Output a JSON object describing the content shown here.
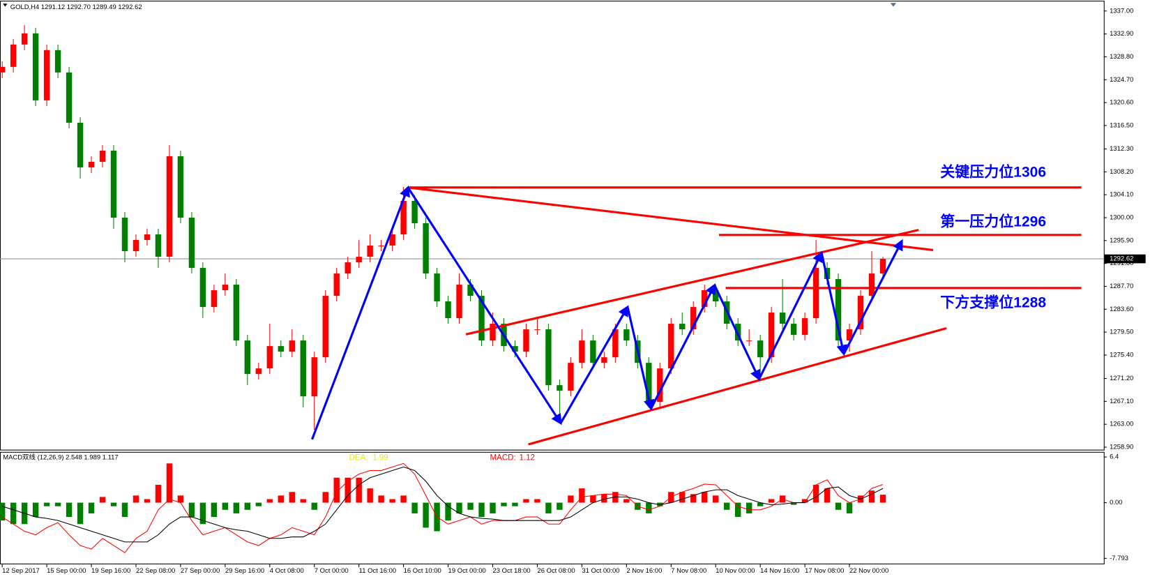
{
  "chart_data": [
    {
      "type": "candlestick",
      "title": "GOLD,H4  1291.12 1292.70 1289.49 1292.62",
      "categories": [
        "12 Sep 2017",
        null,
        null,
        null,
        "15 Sep 00:00",
        null,
        null,
        null,
        "19 Sep 16:00",
        null,
        null,
        null,
        "22 Sep 08:00",
        null,
        null,
        null,
        "27 Sep 00:00",
        null,
        null,
        null,
        "29 Sep 16:00",
        null,
        null,
        null,
        "4 Oct 08:00",
        null,
        null,
        null,
        "7 Oct 00:00",
        null,
        null,
        null,
        "11 Oct 16:00",
        null,
        null,
        null,
        "16 Oct 10:00",
        null,
        null,
        null,
        "19 Oct 00:00",
        null,
        null,
        null,
        "23 Oct 18:00",
        null,
        null,
        null,
        "26 Oct 08:00",
        null,
        null,
        null,
        "31 Oct 00:00",
        null,
        null,
        null,
        "2 Nov 16:00",
        null,
        null,
        null,
        "7 Nov 08:00",
        null,
        null,
        null,
        "10 Nov 00:00",
        null,
        null,
        null,
        "14 Nov 16:00",
        null,
        null,
        null,
        "17 Nov 08:00",
        null,
        null,
        null,
        "22 Nov 00:00",
        null,
        null,
        null
      ],
      "open": [
        1326,
        1327,
        1331,
        1333,
        1321,
        1330,
        1326,
        1317,
        1309,
        1310,
        1312,
        1300,
        1294,
        1296,
        1297,
        1293,
        1311,
        1300,
        1291,
        1284,
        1287,
        1288,
        1278,
        1272,
        1273,
        1277,
        1276,
        1278,
        1268,
        1275,
        1286,
        1290,
        1292,
        1293,
        1295,
        1295,
        1297,
        1303,
        1299,
        1290,
        1285,
        1282,
        1288,
        1286,
        1278,
        1281,
        1277,
        1276,
        1280,
        1280,
        1270,
        1269,
        1274,
        1278,
        1274,
        1275,
        1280,
        1278,
        1274,
        1267,
        1273,
        1281,
        1280,
        1284,
        1287,
        1285,
        1281,
        1278,
        1278,
        1275,
        1283,
        1281,
        1279,
        1282,
        1291,
        1289,
        1278,
        1280,
        1286,
        1290
      ],
      "high": [
        1328,
        1332,
        1334.5,
        1334,
        1331,
        1331,
        1327,
        1318,
        1311,
        1313,
        1313,
        1301,
        1297,
        1298,
        1298,
        1313,
        1312,
        1301,
        1292,
        1288,
        1290,
        1289,
        1279,
        1274,
        1281,
        1278,
        1280,
        1279,
        1276,
        1287,
        1291,
        1293,
        1296,
        1297,
        1296,
        1298,
        1305.5,
        1304,
        1300,
        1291,
        1286,
        1290,
        1289,
        1287,
        1283,
        1282,
        1278,
        1281,
        1282,
        1281,
        1271,
        1275,
        1280,
        1279,
        1276,
        1281,
        1281,
        1279,
        1275,
        1274,
        1282,
        1283,
        1285,
        1288,
        1288,
        1286,
        1282,
        1280,
        1279,
        1284,
        1289,
        1282,
        1283,
        1296,
        1292,
        1290,
        1281,
        1287,
        1294,
        1293
      ],
      "low": [
        1325,
        1326,
        1330,
        1320,
        1320,
        1325,
        1316,
        1307,
        1308,
        1309,
        1298,
        1292,
        1293,
        1295,
        1291,
        1292,
        1299,
        1290,
        1282,
        1283,
        1286,
        1277,
        1270,
        1271,
        1272,
        1275,
        1275,
        1266,
        1262,
        1274,
        1285,
        1289,
        1291,
        1292,
        1294,
        1294,
        1296,
        1298,
        1289,
        1284,
        1281,
        1281,
        1285,
        1277,
        1277,
        1276,
        1275,
        1275,
        1279,
        1269,
        1265,
        1268,
        1273,
        1273,
        1273,
        1274,
        1277,
        1273,
        1266,
        1266,
        1272,
        1279,
        1279,
        1283,
        1284,
        1280,
        1277,
        1277,
        1271,
        1274,
        1280,
        1278,
        1278,
        1281,
        1288,
        1277,
        1276,
        1279,
        1285,
        1289
      ],
      "close": [
        1327,
        1331,
        1333,
        1321,
        1330,
        1326,
        1317,
        1309,
        1310,
        1312,
        1300,
        1294,
        1296,
        1297,
        1293,
        1311,
        1300,
        1291,
        1284,
        1287,
        1288,
        1278,
        1272,
        1273,
        1277,
        1276,
        1278,
        1268,
        1275,
        1286,
        1290,
        1292,
        1293,
        1295,
        1295,
        1297,
        1303,
        1299,
        1290,
        1285,
        1282,
        1288,
        1286,
        1278,
        1281,
        1277,
        1276,
        1280,
        1280,
        1270,
        1269,
        1274,
        1278,
        1274,
        1275,
        1280,
        1278,
        1274,
        1267,
        1273,
        1281,
        1280,
        1284,
        1287,
        1285,
        1281,
        1278,
        1278,
        1275,
        1283,
        1281,
        1279,
        1282,
        1291,
        1289,
        1278,
        1280,
        1286,
        1290,
        1292.62
      ],
      "up_color": "#ff0000",
      "down_color": "#008000",
      "ylim": [
        1258.45,
        1338.71
      ],
      "yticks": [
        {
          "value": 1337,
          "label": "1337.00"
        },
        {
          "value": 1332.9,
          "label": "1332.90"
        },
        {
          "value": 1328.8,
          "label": "1328.80"
        },
        {
          "value": 1324.7,
          "label": "1324.70"
        },
        {
          "value": 1320.6,
          "label": "1320.60"
        },
        {
          "value": 1316.5,
          "label": "1316.50"
        },
        {
          "value": 1312.3,
          "label": "1312.30"
        },
        {
          "value": 1308.2,
          "label": "1308.20"
        },
        {
          "value": 1304.1,
          "label": "1304.10"
        },
        {
          "value": 1300,
          "label": "1300.00"
        },
        {
          "value": 1295.9,
          "label": "1295.90"
        },
        {
          "value": 1291.8,
          "label": "1291.80"
        },
        {
          "value": 1287.7,
          "label": "1287.70"
        },
        {
          "value": 1283.6,
          "label": "1283.60"
        },
        {
          "value": 1279.5,
          "label": "1279.50"
        },
        {
          "value": 1275.4,
          "label": "1275.40"
        },
        {
          "value": 1271.2,
          "label": "1271.20"
        },
        {
          "value": 1267.1,
          "label": "1267.10"
        },
        {
          "value": 1263,
          "label": "1263.00"
        },
        {
          "value": 1258.9,
          "label": "1258.90"
        }
      ],
      "last_price": 1292.62,
      "levels": [
        {
          "label": "关键压力位1306",
          "value": 1305.4,
          "x": [
            36.4,
            96.8
          ]
        },
        {
          "label": "第一压力位1296",
          "value": 1296.9,
          "x": [
            64.3,
            96.8
          ]
        },
        {
          "label": "下方支撑位1288",
          "value": 1287.4,
          "x": [
            64.9,
            96.8
          ]
        }
      ],
      "level_color": "#ff0000",
      "trendlines": [
        {
          "x": [
            36.4,
            83.5
          ],
          "y": [
            1305.4,
            1294.2
          ]
        },
        {
          "x": [
            41.6,
            82.2
          ],
          "y": [
            1279.1,
            1297.8
          ]
        },
        {
          "x": [
            47.2,
            84.7
          ],
          "y": [
            1259.4,
            1280.2
          ]
        }
      ],
      "trend_color": "#ff0000",
      "arrows": {
        "x": [
          27.8,
          36.4,
          50.1,
          56.1,
          58.2,
          63.9,
          67.9,
          73.5,
          75.5,
          80.7
        ],
        "y": [
          1260.3,
          1305.4,
          1263.2,
          1284.0,
          1265.8,
          1287.9,
          1271.1,
          1293.7,
          1275.6,
          1295.8
        ]
      },
      "arrow_color": "#0000ff",
      "label_color": "#0000ff"
    },
    {
      "type": "macd",
      "title": "MACD双线 (12,26,9) 2.548 1.989 1.117",
      "readouts": [
        {
          "name": "DEA:",
          "label": "1.99",
          "color": "#e8e800"
        },
        {
          "name": "MACD:",
          "label": "1.12",
          "color": "#ff0000"
        }
      ],
      "values": [
        -2.5,
        -3,
        -3,
        -2,
        -0.5,
        -0.5,
        -2,
        -3,
        -1.5,
        0.8,
        -0.5,
        -2,
        1,
        0.5,
        2.5,
        5.5,
        1,
        -2,
        -3,
        -2,
        -1,
        -1.5,
        -1,
        -0.5,
        0.5,
        1,
        1.5,
        0.5,
        -1,
        1.5,
        3.5,
        3.5,
        3.5,
        2,
        1,
        0.5,
        1,
        -1.5,
        -3.5,
        -4,
        -2.5,
        -1.5,
        -1,
        -2,
        -1.5,
        -0.5,
        -0.5,
        0.5,
        0.5,
        -1.5,
        -1,
        1,
        2,
        1,
        1.2,
        1.5,
        0.5,
        -1,
        -1.5,
        -0.5,
        1.5,
        1.5,
        1.2,
        1.5,
        1,
        -1,
        -2,
        -1.5,
        -0.5,
        0.5,
        1,
        -0.3,
        0.5,
        2.5,
        2,
        -1,
        -1.5,
        1,
        1.7,
        1.12
      ],
      "up_color": "#ff0000",
      "down_color": "#008000",
      "series": [
        {
          "color": "#ff0000",
          "values": [
            -2,
            -3,
            -4,
            -4.5,
            -3.5,
            -2.8,
            -4.5,
            -6,
            -6.5,
            -5,
            -6,
            -7,
            -5,
            -4,
            -1,
            0.5,
            0,
            -2.5,
            -4.5,
            -4,
            -3.5,
            -4.5,
            -5.5,
            -6,
            -5,
            -4.5,
            -3.5,
            -4,
            -4.5,
            -2,
            1.5,
            3,
            4,
            4.5,
            4.5,
            5,
            5.5,
            4,
            1,
            -2,
            -3,
            -2.5,
            -2,
            -3,
            -2.5,
            -2.5,
            -2.5,
            -2,
            -2,
            -3,
            -3,
            -1,
            0.8,
            1,
            1.2,
            1.2,
            1,
            -0.5,
            -1,
            -0.5,
            0.8,
            1.5,
            2,
            2.6,
            2.5,
            1,
            -0.5,
            -1,
            -1,
            -0.5,
            0.5,
            0,
            0,
            2.5,
            3.2,
            1,
            0,
            0.5,
            2,
            2.548
          ]
        },
        {
          "color": "#000000",
          "values": [
            -0.5,
            -1,
            -1.5,
            -2,
            -2.2,
            -2.5,
            -3,
            -3.5,
            -4,
            -4.5,
            -5,
            -5.5,
            -5.5,
            -5.5,
            -4.5,
            -3,
            -2,
            -2,
            -2.5,
            -3,
            -3.5,
            -3.8,
            -4,
            -4.5,
            -5,
            -5,
            -4.8,
            -4.8,
            -4,
            -3,
            -1,
            1,
            2.5,
            3.5,
            4,
            4.5,
            5,
            4.5,
            3,
            1,
            -0.5,
            -1.5,
            -2,
            -2.2,
            -2.3,
            -2.5,
            -2.5,
            -2.5,
            -2.5,
            -2.5,
            -2.5,
            -2,
            -1,
            0,
            0.5,
            0.8,
            0.8,
            0.5,
            0,
            -0.3,
            0,
            0.5,
            1,
            1.5,
            1.8,
            1.8,
            1,
            0.5,
            0,
            -0.3,
            -0.2,
            0,
            0,
            0.8,
            2,
            2.2,
            1,
            0.5,
            1.2,
            1.989
          ]
        }
      ],
      "ylim": [
        -8.53,
        7.01
      ],
      "yticks": [
        6.4,
        {
          "value": 0,
          "label": "0.00"
        },
        -7.793
      ]
    }
  ]
}
